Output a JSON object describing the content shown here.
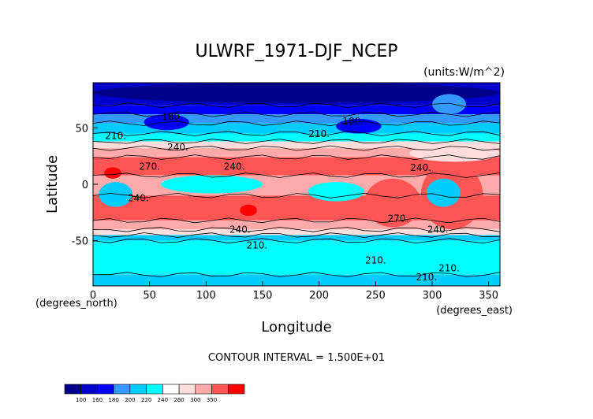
{
  "chart_data": {
    "type": "heatmap",
    "title": "ULWRF_1971-DJF_NCEP",
    "units": "(units:W/m^2)",
    "xlabel": "Longitude",
    "ylabel": "Latitude",
    "x_unit_label": "(degrees_east)",
    "y_unit_label": "(degrees_north)",
    "xlim": [
      0,
      360
    ],
    "ylim": [
      -90,
      90
    ],
    "x_ticks": [
      0,
      50,
      100,
      150,
      200,
      250,
      300,
      350
    ],
    "y_ticks": [
      -50,
      0,
      50
    ],
    "contour_interval_text": "CONTOUR INTERVAL = 1.500E+01",
    "colorbar": {
      "levels": [
        "100",
        "160",
        "180",
        "200",
        "220",
        "240",
        "260",
        "300",
        "350"
      ],
      "colors": [
        "#00008b",
        "#0000cd",
        "#0000ff",
        "#3399ff",
        "#00ccff",
        "#00ffff",
        "#ffffff",
        "#ffdddd",
        "#ffaaaa",
        "#ff5555",
        "#ff0000"
      ]
    },
    "contour_labels": [
      {
        "text": "180.",
        "lon": 70,
        "lat": 57
      },
      {
        "text": "180.",
        "lon": 230,
        "lat": 53
      },
      {
        "text": "210.",
        "lon": 20,
        "lat": 40
      },
      {
        "text": "210.",
        "lon": 200,
        "lat": 42
      },
      {
        "text": "240.",
        "lon": 75,
        "lat": 30
      },
      {
        "text": "240.",
        "lon": 125,
        "lat": 13
      },
      {
        "text": "270.",
        "lon": 50,
        "lat": 13
      },
      {
        "text": "240.",
        "lon": 290,
        "lat": 12
      },
      {
        "text": "240.",
        "lon": 40,
        "lat": -15
      },
      {
        "text": "270.",
        "lon": 270,
        "lat": -33
      },
      {
        "text": "240.",
        "lon": 130,
        "lat": -43
      },
      {
        "text": "240.",
        "lon": 305,
        "lat": -43
      },
      {
        "text": "210.",
        "lon": 145,
        "lat": -57
      },
      {
        "text": "210.",
        "lon": 250,
        "lat": -70
      },
      {
        "text": "210.",
        "lon": 315,
        "lat": -77
      },
      {
        "text": "210.",
        "lon": 295,
        "lat": -85
      }
    ],
    "bands": [
      {
        "lat_top": 90,
        "lat_bottom": 70,
        "color": "#0000cd"
      },
      {
        "lat_top": 70,
        "lat_bottom": 62,
        "color": "#0000ff"
      },
      {
        "lat_top": 62,
        "lat_bottom": 54,
        "color": "#3399ff"
      },
      {
        "lat_top": 54,
        "lat_bottom": 45,
        "color": "#00ccff"
      },
      {
        "lat_top": 45,
        "lat_bottom": 38,
        "color": "#00ffff"
      },
      {
        "lat_top": 38,
        "lat_bottom": 32,
        "color": "#ffdddd"
      },
      {
        "lat_top": 32,
        "lat_bottom": 24,
        "color": "#ffaaaa"
      },
      {
        "lat_top": 24,
        "lat_bottom": 8,
        "color": "#ff5555"
      },
      {
        "lat_top": 8,
        "lat_bottom": -10,
        "color": "#ffaaaa"
      },
      {
        "lat_top": -10,
        "lat_bottom": -32,
        "color": "#ff5555"
      },
      {
        "lat_top": -32,
        "lat_bottom": -40,
        "color": "#ffaaaa"
      },
      {
        "lat_top": -40,
        "lat_bottom": -45,
        "color": "#ffdddd"
      },
      {
        "lat_top": -45,
        "lat_bottom": -50,
        "color": "#00ccff"
      },
      {
        "lat_top": -50,
        "lat_bottom": -80,
        "color": "#00ffff"
      },
      {
        "lat_top": -80,
        "lat_bottom": -90,
        "color": "#00ccff"
      }
    ],
    "patches": [
      {
        "lon0": 290,
        "lon1": 345,
        "lat0": -40,
        "lat1": 20,
        "color": "#ff5555"
      },
      {
        "lon0": 240,
        "lon1": 290,
        "lat0": -38,
        "lat1": 5,
        "color": "#ff5555"
      },
      {
        "lon0": 5,
        "lon1": 35,
        "lat0": -20,
        "lat1": 2,
        "color": "#00ccff"
      },
      {
        "lon0": 60,
        "lon1": 150,
        "lat0": -8,
        "lat1": 8,
        "color": "#00ffff"
      },
      {
        "lon0": 190,
        "lon1": 240,
        "lat0": -15,
        "lat1": 2,
        "color": "#00ffff"
      },
      {
        "lon0": 295,
        "lon1": 325,
        "lat0": -20,
        "lat1": 5,
        "color": "#00ccff"
      },
      {
        "lon0": 280,
        "lon1": 360,
        "lat0": 20,
        "lat1": 35,
        "color": "#ffdddd"
      },
      {
        "lon0": 0,
        "lon1": 360,
        "lat0": 72,
        "lat1": 90,
        "color": "#00008b"
      },
      {
        "lon0": 45,
        "lon1": 85,
        "lat0": 48,
        "lat1": 62,
        "color": "#0000ff"
      },
      {
        "lon0": 215,
        "lon1": 255,
        "lat0": 45,
        "lat1": 58,
        "color": "#0000ff"
      },
      {
        "lon0": 300,
        "lon1": 330,
        "lat0": 62,
        "lat1": 80,
        "color": "#3399ff"
      },
      {
        "lon0": 10,
        "lon1": 25,
        "lat0": 5,
        "lat1": 15,
        "color": "#ff0000"
      },
      {
        "lon0": 130,
        "lon1": 145,
        "lat0": -28,
        "lat1": -18,
        "color": "#ff0000"
      }
    ]
  }
}
